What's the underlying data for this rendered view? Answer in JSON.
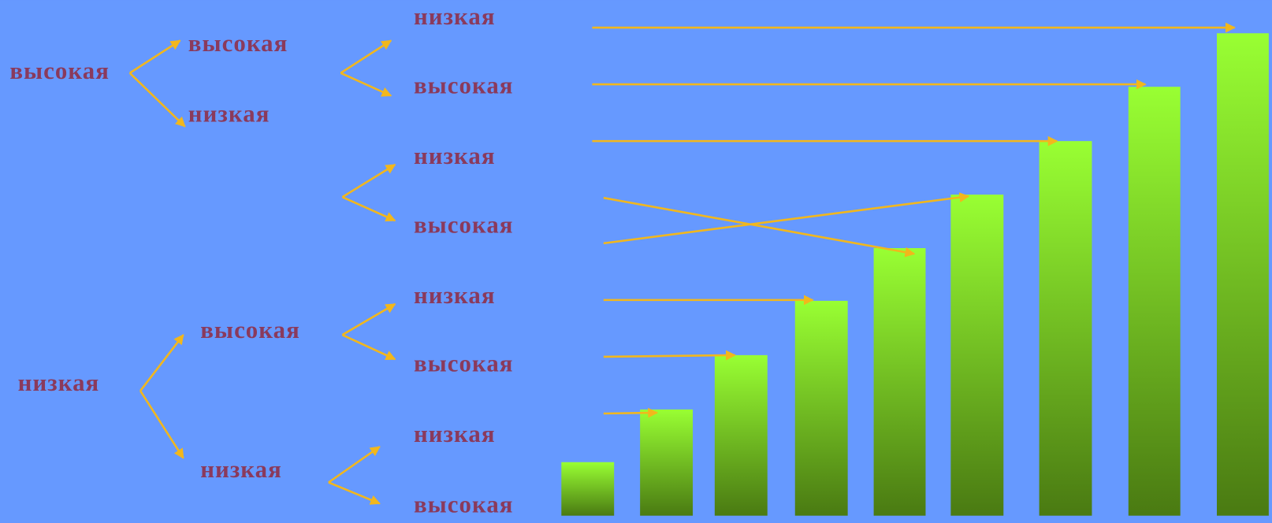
{
  "tree": {
    "level1": [
      "высокая",
      "низкая"
    ],
    "level2": [
      "высокая",
      "низкая",
      "высокая",
      "низкая"
    ],
    "level3": [
      "низкая",
      "высокая",
      "низкая",
      "высокая",
      "низкая",
      "высокая",
      "низкая",
      "высокая"
    ]
  }
}
